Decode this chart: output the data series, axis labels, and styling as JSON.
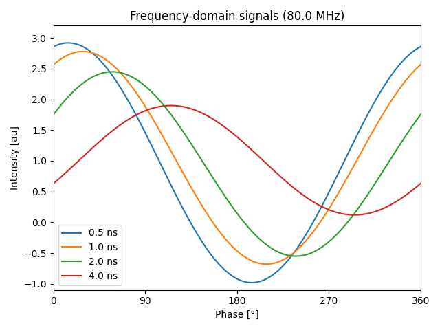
{
  "title": "Frequency-domain signals (80.0 MHz)",
  "xlabel": "Phase [°]",
  "ylabel": "Intensity [au]",
  "freq_MHz": 80.0,
  "delays_ns": [
    0.5,
    1.0,
    2.0,
    4.0
  ],
  "labels": [
    "0.5 ns",
    "1.0 ns",
    "2.0 ns",
    "4.0 ns"
  ],
  "colors": [
    "#1f77b4",
    "#ff7f0e",
    "#2ca02c",
    "#d62728"
  ],
  "amplitudes": [
    1.95,
    1.73,
    1.5,
    0.89
  ],
  "dc_offsets": [
    0.97,
    1.05,
    0.95,
    1.01
  ],
  "xlim": [
    0,
    360
  ],
  "ylim": [
    -1.1,
    3.2
  ],
  "xticks": [
    0,
    90,
    180,
    270,
    360
  ],
  "yticks": [
    -1.0,
    -0.5,
    0.0,
    0.5,
    1.0,
    1.5,
    2.0,
    2.5,
    3.0
  ],
  "legend_loc": "lower left"
}
